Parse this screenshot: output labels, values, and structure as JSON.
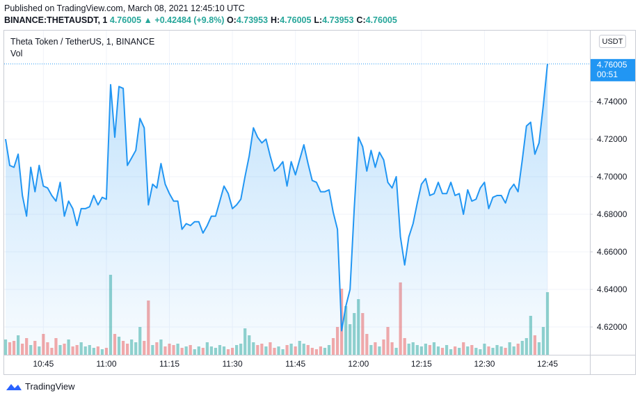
{
  "header": {
    "published": "Published on TradingView.com, March 08, 2021 12:45:10 UTC",
    "symbol": "BINANCE:THETAUSDT, 1",
    "last": "4.76005",
    "change": "▲ +0.42484 (+9.8%)",
    "ohlc": [
      {
        "label": "O:",
        "value": "4.73953"
      },
      {
        "label": "H:",
        "value": "4.76005"
      },
      {
        "label": "L:",
        "value": "4.73953"
      },
      {
        "label": "C:",
        "value": "4.76005"
      }
    ]
  },
  "chart_data": {
    "type": "area",
    "title": "Theta Token / TetherUS, 1, BINANCE",
    "currency_button": "USDT",
    "countdown": "00:51",
    "categories": [
      null,
      null,
      null,
      null,
      null,
      null,
      null,
      null,
      null,
      "10:45",
      null,
      null,
      null,
      null,
      null,
      null,
      null,
      null,
      null,
      null,
      null,
      null,
      null,
      null,
      "11:00",
      null,
      null,
      null,
      null,
      null,
      null,
      null,
      null,
      null,
      null,
      null,
      null,
      null,
      null,
      "11:15",
      null,
      null,
      null,
      null,
      null,
      null,
      null,
      null,
      null,
      null,
      null,
      null,
      null,
      null,
      "11:30",
      null,
      null,
      null,
      null,
      null,
      null,
      null,
      null,
      null,
      null,
      null,
      null,
      null,
      null,
      "11:45",
      null,
      null,
      null,
      null,
      null,
      null,
      null,
      null,
      null,
      null,
      null,
      null,
      null,
      null,
      "12:00",
      null,
      null,
      null,
      null,
      null,
      null,
      null,
      null,
      null,
      null,
      null,
      null,
      null,
      null,
      "12:15",
      null,
      null,
      null,
      null,
      null,
      null,
      null,
      null,
      null,
      null,
      null,
      null,
      null,
      null,
      "12:30",
      null,
      null,
      null,
      null,
      null,
      null,
      null,
      null,
      null,
      null,
      null,
      null,
      null,
      null,
      "12:45"
    ],
    "series": [
      {
        "name": "Theta Token / TetherUS",
        "color": "#2196f3",
        "values": [
          4.72,
          4.706,
          4.705,
          4.712,
          4.69,
          4.679,
          4.705,
          4.692,
          4.706,
          4.695,
          4.694,
          4.69,
          4.687,
          4.697,
          4.679,
          4.687,
          4.683,
          4.674,
          4.683,
          4.683,
          4.684,
          4.69,
          4.685,
          4.689,
          4.688,
          4.749,
          4.721,
          4.748,
          4.747,
          4.706,
          4.71,
          4.714,
          4.731,
          4.726,
          4.685,
          4.696,
          4.694,
          4.707,
          4.696,
          4.691,
          4.687,
          4.687,
          4.672,
          4.675,
          4.674,
          4.676,
          4.676,
          4.67,
          4.674,
          4.679,
          4.679,
          4.687,
          4.695,
          4.691,
          4.683,
          4.685,
          4.688,
          4.7,
          4.711,
          4.726,
          4.721,
          4.718,
          4.72,
          4.711,
          4.703,
          4.705,
          4.708,
          4.695,
          4.708,
          4.701,
          4.709,
          4.717,
          4.707,
          4.698,
          4.697,
          4.692,
          4.692,
          4.693,
          4.681,
          4.672,
          4.618,
          4.631,
          4.64,
          4.683,
          4.721,
          4.716,
          4.703,
          4.714,
          4.705,
          4.713,
          4.709,
          4.697,
          4.694,
          4.7,
          4.668,
          4.653,
          4.668,
          4.675,
          4.686,
          4.696,
          4.699,
          4.69,
          4.691,
          4.697,
          4.691,
          4.691,
          4.697,
          4.69,
          4.691,
          4.68,
          4.693,
          4.687,
          4.688,
          4.694,
          4.697,
          4.683,
          4.689,
          4.69,
          4.69,
          4.686,
          4.693,
          4.696,
          4.692,
          4.709,
          4.727,
          4.729,
          4.712,
          4.718,
          4.738,
          4.76005
        ]
      }
    ],
    "volume": {
      "name": "Vol",
      "up_color": "#26a69a",
      "down_color": "#ef5350",
      "values": [
        22,
        18,
        20,
        28,
        16,
        24,
        14,
        20,
        12,
        30,
        18,
        10,
        24,
        14,
        16,
        22,
        12,
        14,
        18,
        12,
        14,
        10,
        12,
        8,
        10,
        115,
        30,
        26,
        20,
        16,
        22,
        18,
        40,
        20,
        78,
        14,
        18,
        22,
        12,
        16,
        14,
        16,
        10,
        12,
        14,
        8,
        12,
        10,
        18,
        12,
        10,
        14,
        12,
        8,
        10,
        14,
        16,
        38,
        28,
        18,
        14,
        16,
        12,
        18,
        10,
        12,
        8,
        14,
        16,
        12,
        20,
        16,
        14,
        10,
        8,
        12,
        10,
        14,
        24,
        40,
        95,
        70,
        44,
        60,
        80,
        60,
        30,
        14,
        18,
        12,
        22,
        40,
        18,
        10,
        104,
        24,
        16,
        18,
        14,
        12,
        16,
        14,
        18,
        12,
        10,
        14,
        8,
        12,
        10,
        18,
        12,
        14,
        10,
        8,
        16,
        12,
        10,
        14,
        12,
        10,
        18,
        12,
        16,
        20,
        24,
        56,
        28,
        18,
        40,
        90
      ]
    },
    "ylim": [
      4.6052,
      4.7774
    ],
    "yticks": [
      {
        "value": 4.62,
        "label": "4.62000"
      },
      {
        "value": 4.64,
        "label": "4.64000"
      },
      {
        "value": 4.66,
        "label": "4.66000"
      },
      {
        "value": 4.68,
        "label": "4.68000"
      },
      {
        "value": 4.7,
        "label": "4.70000"
      },
      {
        "value": 4.72,
        "label": "4.72000"
      },
      {
        "value": 4.74,
        "label": "4.74000"
      }
    ],
    "grid": true
  },
  "footer": {
    "brand": "TradingView"
  }
}
